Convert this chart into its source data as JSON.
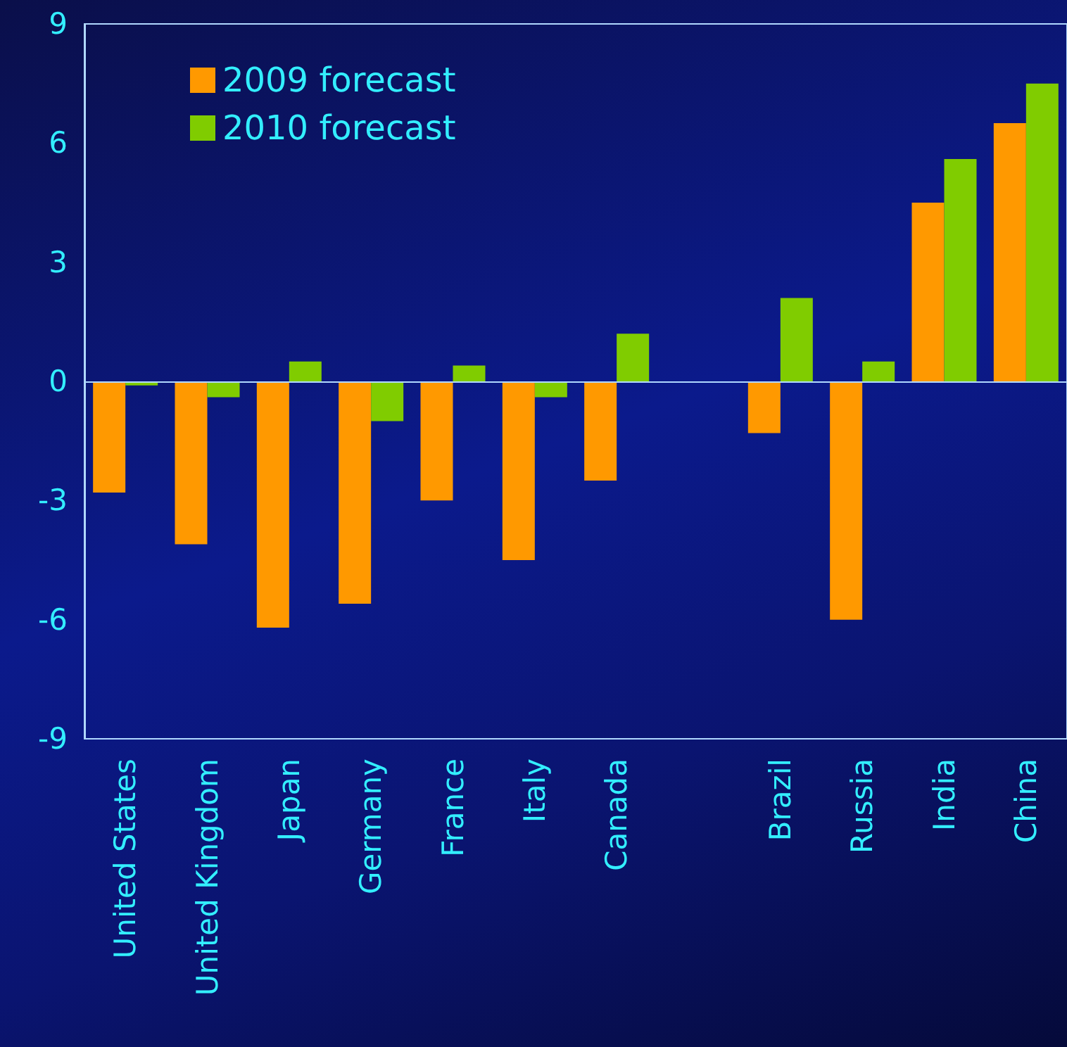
{
  "chart_data": {
    "type": "bar",
    "categories": [
      "United States",
      "United Kingdom",
      "Japan",
      "Germany",
      "France",
      "Italy",
      "Canada",
      null,
      "Brazil",
      "Russia",
      "India",
      "China"
    ],
    "series": [
      {
        "name": "2009 forecast",
        "color": "#ff9900",
        "values": [
          -2.8,
          -4.1,
          -6.2,
          -5.6,
          -3.0,
          -4.5,
          -2.5,
          null,
          -1.3,
          -6.0,
          4.5,
          6.5
        ]
      },
      {
        "name": "2010 forecast",
        "color": "#80cc00",
        "values": [
          -0.1,
          -0.4,
          0.5,
          -1.0,
          0.4,
          -0.4,
          1.2,
          null,
          2.1,
          0.5,
          5.6,
          7.5
        ]
      }
    ],
    "ylim": [
      -9,
      9
    ],
    "yticks": [
      -9,
      -6,
      -3,
      0,
      3,
      6,
      9
    ],
    "ref_lines": [
      {
        "axis": "y",
        "value": 0,
        "color": "#b0d8ff"
      }
    ],
    "grid": false,
    "legend": "top left"
  }
}
